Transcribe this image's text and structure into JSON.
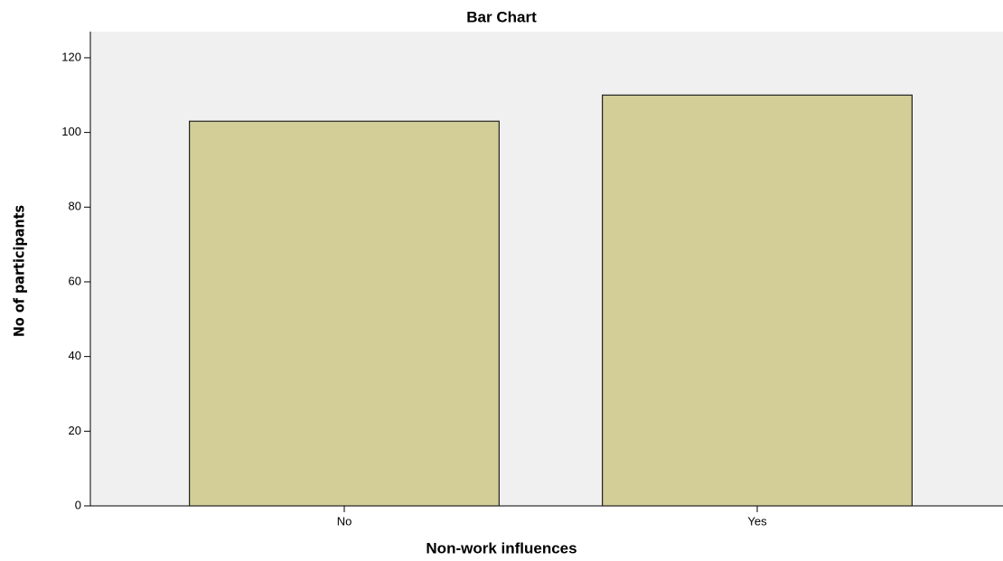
{
  "chart_data": {
    "type": "bar",
    "title": "Bar Chart",
    "x_label": "Non-work influences",
    "y_label": "No of participants",
    "categories": [
      "No",
      "Yes"
    ],
    "values": [
      103,
      110
    ],
    "color": "#d3ce97",
    "ylim": [
      0,
      127
    ],
    "yticks": [
      0,
      20,
      40,
      60,
      80,
      100,
      120
    ],
    "grid": false
  }
}
